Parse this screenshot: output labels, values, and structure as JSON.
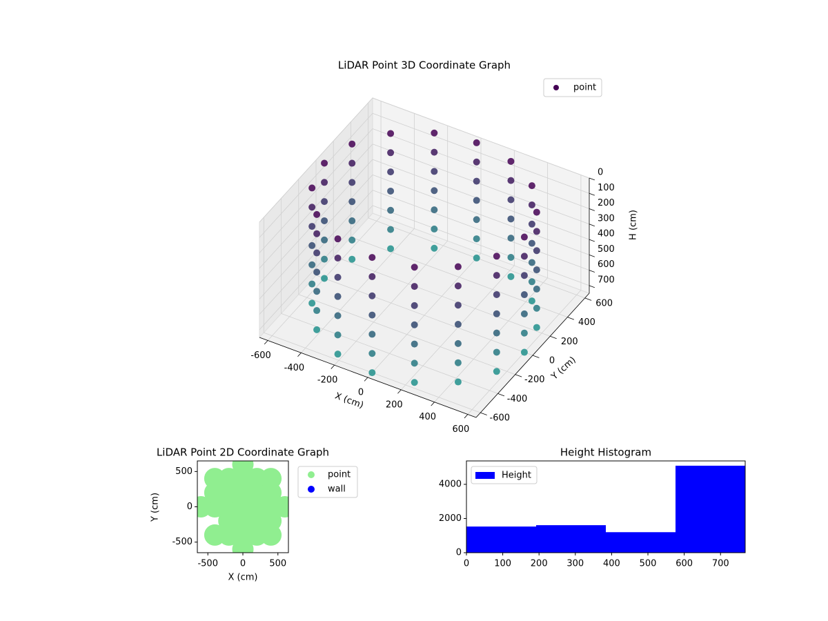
{
  "chart_data": [
    {
      "type": "scatter3d",
      "title": "LiDAR Point 3D Coordinate Graph",
      "xlabel": "X (cm)",
      "ylabel": "Y (cm)",
      "zlabel": "H (cm)",
      "xlim": [
        -650,
        650
      ],
      "ylim": [
        -650,
        650
      ],
      "zlim": [
        750,
        0
      ],
      "xticks": [
        -600,
        -400,
        -200,
        0,
        200,
        400,
        600
      ],
      "yticks": [
        -600,
        -400,
        -200,
        0,
        200,
        400,
        600
      ],
      "zticks": [
        0,
        100,
        200,
        300,
        400,
        500,
        600,
        700
      ],
      "colormap": [
        "#440154",
        "#21918c"
      ],
      "grid": true,
      "legend_loc": "upper right",
      "series": [
        {
          "name": "point",
          "color": "#440154",
          "x": [
            600,
            554,
            424,
            230,
            0,
            -230,
            -424,
            -554,
            -600,
            -554,
            -424,
            -230,
            0,
            230,
            424,
            554,
            600,
            554,
            424,
            230,
            0,
            -230,
            -424,
            -554,
            -600,
            -554,
            -424,
            -230,
            0,
            230,
            424,
            554,
            600,
            554,
            424,
            230,
            0,
            -230,
            -424,
            -554,
            -600,
            -554,
            -424,
            -230,
            0,
            230,
            424,
            554,
            600,
            554,
            424,
            230,
            0,
            -230,
            -424,
            -554,
            -600,
            -554,
            -424,
            -230,
            0,
            230,
            424,
            554,
            600,
            554,
            424,
            230,
            0,
            -230,
            -424,
            -554,
            -600,
            -554,
            -424,
            -230,
            0,
            230,
            424,
            554,
            600,
            554,
            424,
            230,
            0,
            -230,
            -424,
            -554,
            -600,
            -554,
            -424,
            -230,
            0,
            230,
            424,
            554,
            600,
            554,
            424,
            230,
            0,
            -230,
            -424,
            -554,
            -600,
            -554,
            -424,
            -230,
            0,
            230,
            424,
            554
          ],
          "y": [
            0,
            230,
            424,
            554,
            600,
            554,
            424,
            230,
            0,
            -230,
            -424,
            -554,
            -600,
            -554,
            -424,
            -230,
            0,
            230,
            424,
            554,
            600,
            554,
            424,
            230,
            0,
            -230,
            -424,
            -554,
            -600,
            -554,
            -424,
            -230,
            0,
            230,
            424,
            554,
            600,
            554,
            424,
            230,
            0,
            -230,
            -424,
            -554,
            -600,
            -554,
            -424,
            -230,
            0,
            230,
            424,
            554,
            600,
            554,
            424,
            230,
            0,
            -230,
            -424,
            -554,
            -600,
            -554,
            -424,
            -230,
            0,
            230,
            424,
            554,
            600,
            554,
            424,
            230,
            0,
            -230,
            -424,
            -554,
            -600,
            -554,
            -424,
            -230,
            0,
            230,
            424,
            554,
            600,
            554,
            424,
            230,
            0,
            -230,
            -424,
            -554,
            -600,
            -554,
            -424,
            -230,
            0,
            230,
            424,
            554,
            600,
            554,
            424,
            230,
            0,
            -230,
            -424,
            -554,
            -600,
            -554,
            -424,
            -230
          ],
          "z": [
            0,
            0,
            0,
            0,
            0,
            0,
            0,
            0,
            0,
            0,
            0,
            0,
            0,
            0,
            0,
            0,
            125,
            125,
            125,
            125,
            125,
            125,
            125,
            125,
            125,
            125,
            125,
            125,
            125,
            125,
            125,
            125,
            250,
            250,
            250,
            250,
            250,
            250,
            250,
            250,
            250,
            250,
            250,
            250,
            250,
            250,
            250,
            250,
            375,
            375,
            375,
            375,
            375,
            375,
            375,
            375,
            375,
            375,
            375,
            375,
            375,
            375,
            375,
            375,
            500,
            500,
            500,
            500,
            500,
            500,
            500,
            500,
            500,
            500,
            500,
            500,
            500,
            500,
            500,
            500,
            625,
            625,
            625,
            625,
            625,
            625,
            625,
            625,
            625,
            625,
            625,
            625,
            625,
            625,
            625,
            625,
            750,
            750,
            750,
            750,
            750,
            750,
            750,
            750,
            750,
            750,
            750,
            750,
            750,
            750,
            750,
            750
          ]
        }
      ]
    },
    {
      "type": "scatter",
      "title": "LiDAR Point 2D Coordinate Graph",
      "xlabel": "X (cm)",
      "ylabel": "Y (cm)",
      "xlim": [
        -650,
        650
      ],
      "ylim": [
        -650,
        650
      ],
      "xticks": [
        -500,
        0,
        500
      ],
      "yticks": [
        -500,
        0,
        500
      ],
      "legend_loc": "outside right",
      "series": [
        {
          "name": "point",
          "color": "#90ee90",
          "x": [
            -600,
            -400,
            -400,
            -400,
            -400,
            -200,
            -200,
            -200,
            -200,
            -200,
            0,
            0,
            0,
            0,
            0,
            0,
            0,
            200,
            200,
            200,
            200,
            200,
            400,
            400,
            400,
            400,
            400,
            600
          ],
          "y": [
            0,
            -400,
            0,
            200,
            400,
            -400,
            -200,
            0,
            200,
            400,
            -600,
            -400,
            -200,
            0,
            200,
            400,
            600,
            -400,
            -200,
            0,
            200,
            400,
            -400,
            -200,
            0,
            200,
            400,
            0
          ]
        },
        {
          "name": "wall",
          "color": "#0000ff",
          "x": [],
          "y": []
        }
      ]
    },
    {
      "type": "histogram",
      "title": "Height Histogram",
      "bins": [
        0,
        192,
        384,
        576,
        768
      ],
      "xlim": [
        0,
        768
      ],
      "ylim": [
        0,
        5370
      ],
      "xticks": [
        0,
        100,
        200,
        300,
        400,
        500,
        600,
        700
      ],
      "yticks": [
        0,
        2000,
        4000
      ],
      "legend_loc": "upper left",
      "series": [
        {
          "name": "Height",
          "color": "#0000ff",
          "values": [
            1530,
            1610,
            1200,
            5090
          ]
        }
      ]
    }
  ]
}
